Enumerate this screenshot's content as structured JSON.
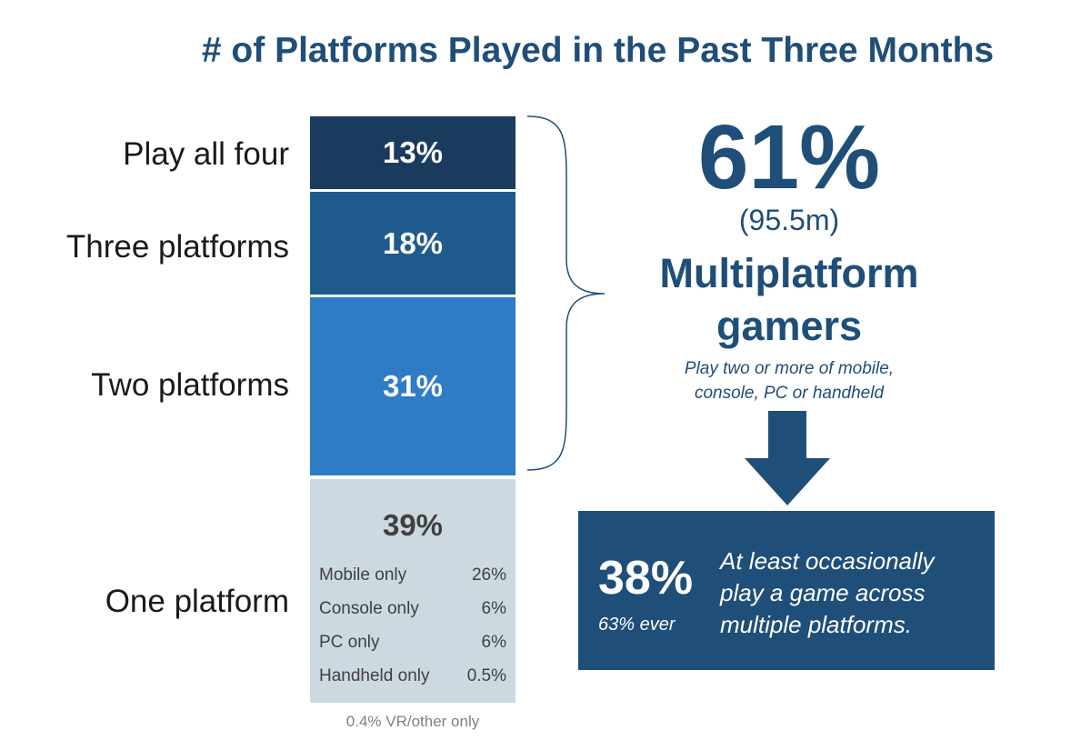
{
  "title": "# of Platforms Played in the Past Three Months",
  "colors": {
    "title": "#1f4e79",
    "play_all_four": "#1a3a5e",
    "three_platforms": "#1f5a8c",
    "two_platforms": "#2e7bc6",
    "one_platform": "#ccd9e0",
    "callout": "#1f4e79"
  },
  "chart_data": {
    "type": "bar",
    "stacked": true,
    "categories": [
      "Play all four",
      "Three platforms",
      "Two platforms",
      "One platform"
    ],
    "values": [
      13,
      18,
      31,
      39
    ],
    "value_labels": [
      "13%",
      "18%",
      "31%",
      "39%"
    ],
    "one_platform_breakdown": [
      {
        "label": "Mobile only",
        "value": "26%"
      },
      {
        "label": "Console only",
        "value": "6%"
      },
      {
        "label": "PC only",
        "value": "6%"
      },
      {
        "label": "Handheld only",
        "value": "0.5%"
      }
    ],
    "footnote": "0.4% VR/other only"
  },
  "summary": {
    "percent": "61%",
    "count": "(95.5m)",
    "label_line1": "Multiplatform",
    "label_line2": "gamers",
    "note_line1": "Play two or more of mobile,",
    "note_line2": "console, PC or handheld"
  },
  "callout": {
    "percent": "38%",
    "ever": "63% ever",
    "text_line1": "At least occasionally",
    "text_line2": "play a game across",
    "text_line3": "multiple platforms."
  }
}
